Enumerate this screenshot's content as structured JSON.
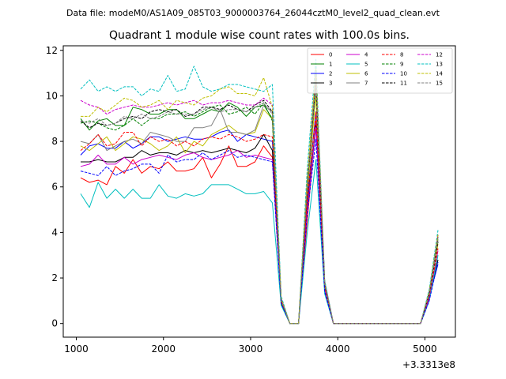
{
  "figure": {
    "suptitle": "Data file: modeM0/AS1A09_085T03_9000003764_26044cztM0_level2_quad_clean.evt"
  },
  "chart_data": {
    "type": "line",
    "title": "Quadrant 1 module wise count rates with 100.0s bins.",
    "xlabel": "",
    "ylabel": "",
    "x_offset_label": "+3.3313e8",
    "xlim": [
      850,
      5350
    ],
    "ylim": [
      -0.6,
      12.2
    ],
    "xticks": [
      1000,
      2000,
      3000,
      4000,
      5000
    ],
    "xtick_labels": [
      "1000",
      "2000",
      "3000",
      "4000",
      "5000"
    ],
    "yticks": [
      0,
      2,
      4,
      6,
      8,
      10,
      12
    ],
    "ytick_labels": [
      "0",
      "2",
      "4",
      "6",
      "8",
      "10",
      "12"
    ],
    "grid": false,
    "legend": {
      "location": "upper right",
      "columns": 4
    },
    "x": [
      1050,
      1150,
      1250,
      1350,
      1450,
      1550,
      1650,
      1750,
      1850,
      1950,
      2050,
      2150,
      2250,
      2350,
      2450,
      2550,
      2650,
      2750,
      2850,
      2950,
      3050,
      3150,
      3250,
      3350,
      3450,
      3550,
      3650,
      3750,
      3850,
      3950,
      4050,
      4150,
      4250,
      4350,
      4450,
      4550,
      4650,
      4750,
      4850,
      4950,
      5050,
      5150
    ],
    "series": [
      {
        "name": "0",
        "color": "#ff0000",
        "dash": "solid",
        "values": [
          6.4,
          6.2,
          6.3,
          6.1,
          6.9,
          6.6,
          7.2,
          6.6,
          6.9,
          6.8,
          7.1,
          6.7,
          6.7,
          6.8,
          7.3,
          6.4,
          7.0,
          7.8,
          6.9,
          6.9,
          7.1,
          7.8,
          7.3,
          1.0,
          0.0,
          0.0,
          4.5,
          8.9,
          1.6,
          0.0,
          0.0,
          0.0,
          0.0,
          0.0,
          0.0,
          0.0,
          0.0,
          0.0,
          0.0,
          0.0,
          1.2,
          3.9
        ]
      },
      {
        "name": "1",
        "color": "#008000",
        "dash": "solid",
        "values": [
          9.0,
          8.5,
          8.9,
          9.0,
          8.7,
          8.7,
          9.5,
          9.4,
          9.2,
          9.2,
          9.4,
          9.4,
          9.0,
          9.0,
          9.2,
          9.4,
          9.3,
          9.7,
          9.5,
          9.1,
          9.5,
          9.6,
          9.0,
          1.1,
          0.0,
          0.0,
          6.0,
          11.0,
          1.8,
          0.0,
          0.0,
          0.0,
          0.0,
          0.0,
          0.0,
          0.0,
          0.0,
          0.0,
          0.0,
          0.0,
          1.4,
          3.6
        ]
      },
      {
        "name": "2",
        "color": "#0000ff",
        "dash": "solid",
        "values": [
          7.4,
          7.8,
          7.9,
          7.7,
          7.7,
          8.0,
          7.7,
          7.9,
          8.2,
          8.2,
          8.0,
          8.1,
          8.2,
          8.1,
          8.1,
          8.2,
          8.4,
          8.5,
          8.0,
          8.3,
          8.2,
          8.1,
          8.0,
          1.0,
          0.0,
          0.0,
          5.5,
          9.3,
          1.6,
          0.0,
          0.0,
          0.0,
          0.0,
          0.0,
          0.0,
          0.0,
          0.0,
          0.0,
          0.0,
          0.0,
          1.2,
          2.6
        ]
      },
      {
        "name": "3",
        "color": "#000000",
        "dash": "solid",
        "values": [
          7.1,
          7.1,
          7.2,
          7.1,
          7.1,
          7.3,
          7.3,
          7.6,
          7.4,
          7.5,
          7.5,
          7.4,
          7.6,
          7.5,
          7.6,
          7.5,
          7.6,
          7.7,
          7.6,
          7.5,
          7.7,
          8.3,
          7.6,
          0.9,
          0.0,
          0.0,
          5.2,
          8.7,
          1.5,
          0.0,
          0.0,
          0.0,
          0.0,
          0.0,
          0.0,
          0.0,
          0.0,
          0.0,
          0.0,
          0.0,
          1.1,
          2.8
        ]
      },
      {
        "name": "4",
        "color": "#cc00cc",
        "dash": "solid",
        "values": [
          6.9,
          7.0,
          7.4,
          7.0,
          7.0,
          7.3,
          7.0,
          7.2,
          7.3,
          7.4,
          7.3,
          7.2,
          7.4,
          7.5,
          7.3,
          7.2,
          7.3,
          7.4,
          7.6,
          7.3,
          7.4,
          7.3,
          7.2,
          1.0,
          0.0,
          0.0,
          5.0,
          8.6,
          1.5,
          0.0,
          0.0,
          0.0,
          0.0,
          0.0,
          0.0,
          0.0,
          0.0,
          0.0,
          0.0,
          0.0,
          1.1,
          3.2
        ]
      },
      {
        "name": "5",
        "color": "#00bfbf",
        "dash": "solid",
        "values": [
          5.7,
          5.1,
          6.2,
          5.5,
          5.9,
          5.5,
          5.9,
          5.5,
          5.5,
          6.1,
          5.6,
          5.5,
          5.7,
          5.6,
          5.7,
          6.1,
          6.1,
          6.1,
          5.9,
          5.7,
          5.7,
          5.8,
          5.3,
          0.8,
          0.0,
          0.0,
          4.0,
          7.2,
          1.3,
          0.0,
          0.0,
          0.0,
          0.0,
          0.0,
          0.0,
          0.0,
          0.0,
          0.0,
          0.0,
          0.0,
          1.0,
          3.0
        ]
      },
      {
        "name": "6",
        "color": "#bfbf00",
        "dash": "solid",
        "values": [
          7.8,
          7.6,
          7.9,
          8.2,
          7.6,
          7.9,
          8.2,
          8.1,
          7.9,
          7.6,
          7.8,
          8.2,
          7.5,
          8.0,
          7.8,
          8.3,
          8.5,
          8.7,
          8.4,
          8.3,
          8.4,
          9.4,
          9.0,
          1.0,
          0.0,
          0.0,
          5.8,
          10.0,
          1.7,
          0.0,
          0.0,
          0.0,
          0.0,
          0.0,
          0.0,
          0.0,
          0.0,
          0.0,
          0.0,
          0.0,
          1.3,
          3.5
        ]
      },
      {
        "name": "7",
        "color": "#808080",
        "dash": "solid",
        "values": [
          8.0,
          7.9,
          8.3,
          7.6,
          7.8,
          8.0,
          8.1,
          7.9,
          8.4,
          8.3,
          8.2,
          8.0,
          8.0,
          8.6,
          8.6,
          8.7,
          9.4,
          8.4,
          8.4,
          8.3,
          8.5,
          9.6,
          9.3,
          1.1,
          0.0,
          0.0,
          6.1,
          10.6,
          1.8,
          0.0,
          0.0,
          0.0,
          0.0,
          0.0,
          0.0,
          0.0,
          0.0,
          0.0,
          0.0,
          0.0,
          1.3,
          3.7
        ]
      },
      {
        "name": "8",
        "color": "#ff0000",
        "dash": "dashed",
        "values": [
          7.6,
          7.9,
          8.3,
          7.8,
          7.9,
          8.4,
          8.4,
          7.8,
          8.2,
          8.0,
          8.1,
          7.8,
          8.0,
          7.8,
          8.1,
          8.2,
          8.1,
          8.3,
          8.2,
          8.0,
          8.1,
          8.3,
          8.2,
          1.0,
          0.0,
          0.0,
          5.4,
          9.3,
          1.6,
          0.0,
          0.0,
          0.0,
          0.0,
          0.0,
          0.0,
          0.0,
          0.0,
          0.0,
          0.0,
          0.0,
          1.2,
          3.3
        ]
      },
      {
        "name": "9",
        "color": "#008000",
        "dash": "dashed",
        "values": [
          8.8,
          8.9,
          8.8,
          8.6,
          8.5,
          8.7,
          9.0,
          8.7,
          9.0,
          9.0,
          9.2,
          9.2,
          9.3,
          9.1,
          9.3,
          9.5,
          9.6,
          9.2,
          9.3,
          9.5,
          9.2,
          9.7,
          8.9,
          1.1,
          0.0,
          0.0,
          6.0,
          10.5,
          1.7,
          0.0,
          0.0,
          0.0,
          0.0,
          0.0,
          0.0,
          0.0,
          0.0,
          0.0,
          0.0,
          0.0,
          1.3,
          3.8
        ]
      },
      {
        "name": "10",
        "color": "#0000ff",
        "dash": "dashed",
        "values": [
          6.7,
          6.6,
          6.5,
          6.9,
          6.5,
          6.7,
          6.8,
          7.0,
          7.0,
          6.6,
          7.4,
          7.1,
          7.2,
          7.2,
          7.5,
          7.2,
          7.4,
          7.6,
          7.3,
          7.4,
          7.3,
          7.2,
          7.1,
          0.9,
          0.0,
          0.0,
          4.8,
          8.1,
          1.4,
          0.0,
          0.0,
          0.0,
          0.0,
          0.0,
          0.0,
          0.0,
          0.0,
          0.0,
          0.0,
          0.0,
          1.0,
          2.7
        ]
      },
      {
        "name": "11",
        "color": "#000000",
        "dash": "dashed",
        "values": [
          8.9,
          8.6,
          8.8,
          8.7,
          8.8,
          9.0,
          9.1,
          9.0,
          9.3,
          9.4,
          9.3,
          9.4,
          9.1,
          9.2,
          9.5,
          9.5,
          9.4,
          9.6,
          9.4,
          9.3,
          9.6,
          9.8,
          9.3,
          1.1,
          0.0,
          0.0,
          6.1,
          10.6,
          1.8,
          0.0,
          0.0,
          0.0,
          0.0,
          0.0,
          0.0,
          0.0,
          0.0,
          0.0,
          0.0,
          0.0,
          1.3,
          3.6
        ]
      },
      {
        "name": "12",
        "color": "#cc00cc",
        "dash": "dashed",
        "values": [
          9.8,
          9.6,
          9.5,
          9.2,
          9.4,
          9.5,
          9.6,
          9.5,
          9.5,
          9.6,
          9.7,
          9.6,
          9.7,
          9.8,
          9.6,
          9.7,
          9.7,
          9.8,
          9.7,
          9.6,
          9.6,
          9.9,
          9.6,
          1.1,
          0.0,
          0.0,
          6.3,
          11.0,
          1.8,
          0.0,
          0.0,
          0.0,
          0.0,
          0.0,
          0.0,
          0.0,
          0.0,
          0.0,
          0.0,
          0.0,
          1.4,
          3.9
        ]
      },
      {
        "name": "13",
        "color": "#00bfbf",
        "dash": "dashed",
        "values": [
          10.3,
          10.7,
          10.2,
          10.4,
          10.2,
          10.4,
          10.4,
          10.0,
          10.3,
          10.2,
          10.9,
          10.2,
          10.3,
          11.3,
          10.4,
          10.2,
          10.3,
          10.5,
          10.5,
          10.4,
          10.3,
          10.2,
          10.5,
          1.2,
          0.0,
          0.0,
          6.8,
          11.6,
          1.9,
          0.0,
          0.0,
          0.0,
          0.0,
          0.0,
          0.0,
          0.0,
          0.0,
          0.0,
          0.0,
          0.0,
          1.5,
          4.1
        ]
      },
      {
        "name": "14",
        "color": "#bfbf00",
        "dash": "dashed",
        "values": [
          9.1,
          9.1,
          9.5,
          9.3,
          9.6,
          9.9,
          9.8,
          9.5,
          9.6,
          9.8,
          9.4,
          9.8,
          9.7,
          9.6,
          9.9,
          10.0,
          10.3,
          10.4,
          10.1,
          10.1,
          10.0,
          10.8,
          9.5,
          1.1,
          0.0,
          0.0,
          6.4,
          11.2,
          1.8,
          0.0,
          0.0,
          0.0,
          0.0,
          0.0,
          0.0,
          0.0,
          0.0,
          0.0,
          0.0,
          0.0,
          1.4,
          3.9
        ]
      },
      {
        "name": "15",
        "color": "#808080",
        "dash": "dashed",
        "values": [
          8.9,
          8.8,
          9.0,
          8.7,
          8.8,
          9.1,
          9.0,
          9.2,
          9.0,
          9.1,
          9.3,
          9.2,
          9.2,
          9.2,
          9.4,
          9.5,
          9.3,
          9.4,
          9.4,
          9.3,
          9.5,
          9.7,
          9.2,
          1.1,
          0.0,
          0.0,
          6.1,
          10.7,
          1.8,
          0.0,
          0.0,
          0.0,
          0.0,
          0.0,
          0.0,
          0.0,
          0.0,
          0.0,
          0.0,
          0.0,
          1.3,
          3.7
        ]
      }
    ]
  }
}
